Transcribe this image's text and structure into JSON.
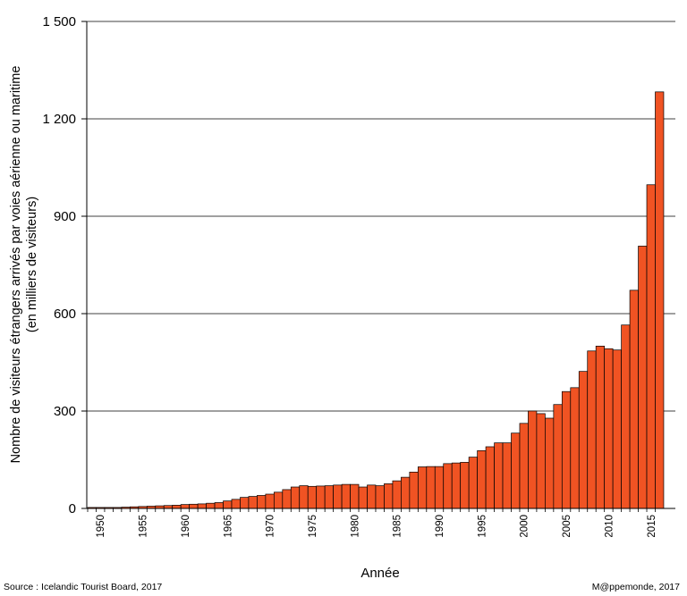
{
  "chart_data": {
    "type": "bar",
    "title": "",
    "xlabel": "Année",
    "ylabel": "Nombre de visiteurs étrangers arrivés par  voies aérienne ou maritime",
    "ylabel_line2": "(en milliers de visiteurs)",
    "ylim": [
      0,
      1500
    ],
    "grid": true,
    "y_ticks": [
      0,
      300,
      600,
      900,
      1200,
      1500
    ],
    "y_tick_labels": [
      "0",
      "300",
      "600",
      "900",
      "1 200",
      "1 500"
    ],
    "x_tick_labels": [
      "1950",
      "1955",
      "1960",
      "1965",
      "1970",
      "1975",
      "1980",
      "1985",
      "1990",
      "1995",
      "2000",
      "2005",
      "2010",
      "2015"
    ],
    "bar_color": "#f05323",
    "categories": [
      1949,
      1950,
      1951,
      1952,
      1953,
      1954,
      1955,
      1956,
      1957,
      1958,
      1959,
      1960,
      1961,
      1962,
      1963,
      1964,
      1965,
      1966,
      1967,
      1968,
      1969,
      1970,
      1971,
      1972,
      1973,
      1974,
      1975,
      1976,
      1977,
      1978,
      1979,
      1980,
      1981,
      1982,
      1983,
      1984,
      1985,
      1986,
      1987,
      1988,
      1989,
      1990,
      1991,
      1992,
      1993,
      1994,
      1995,
      1996,
      1997,
      1998,
      1999,
      2000,
      2001,
      2002,
      2003,
      2004,
      2005,
      2006,
      2007,
      2008,
      2009,
      2010,
      2011,
      2012,
      2013,
      2014,
      2015,
      2016
    ],
    "values": [
      3,
      3,
      3,
      3,
      4,
      5,
      6,
      7,
      8,
      9,
      10,
      12,
      13,
      14,
      16,
      18,
      23,
      28,
      34,
      37,
      40,
      44,
      50,
      58,
      66,
      70,
      68,
      69,
      70,
      72,
      74,
      74,
      66,
      72,
      70,
      76,
      85,
      96,
      112,
      128,
      129,
      129,
      138,
      140,
      142,
      158,
      178,
      190,
      202,
      202,
      232,
      262,
      300,
      292,
      278,
      320,
      360,
      372,
      422,
      485,
      500,
      492,
      488,
      565,
      672,
      808,
      997,
      1283
    ]
  },
  "footer": {
    "source": "Source : Icelandic Tourist Board, 2017",
    "credit": "M@ppemonde, 2017"
  }
}
